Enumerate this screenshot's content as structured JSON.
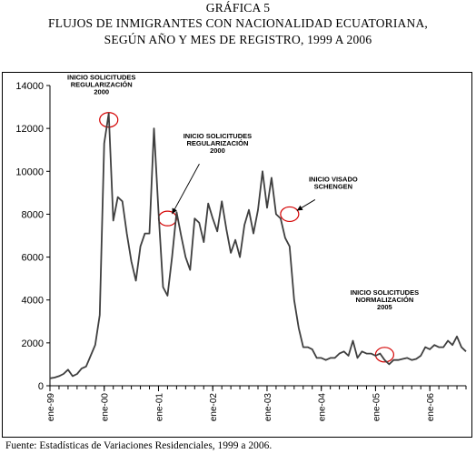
{
  "header": {
    "kicker": "GRÁFICA 5",
    "title_line1": "FLUJOS DE INMIGRANTES CON NACIONALIDAD ECUATORIANA,",
    "title_line2": "SEGÚN AÑO Y MES DE REGISTRO, 1999 A 2006"
  },
  "footer": {
    "source": "Fuente: Estadísticas de Variaciones Residenciales, 1999 a 2006."
  },
  "colors": {
    "line": "#3f3f3f",
    "annotation_circle": "#d40000",
    "axis": "#000000"
  },
  "chart_data": {
    "type": "line",
    "title": "",
    "xlabel": "",
    "ylabel": "",
    "ylim": [
      0,
      14000
    ],
    "yticks": [
      0,
      2000,
      4000,
      6000,
      8000,
      10000,
      12000,
      14000
    ],
    "ytick_labels": [
      "0",
      "2000",
      "4000",
      "6000",
      "8000",
      "10000",
      "12000",
      "14000"
    ],
    "xtick_labels": [
      "ene-99",
      "ene-00",
      "ene-01",
      "ene-02",
      "ene-03",
      "ene-04",
      "ene-05",
      "ene-06"
    ],
    "grid": false,
    "legend": "none",
    "series": [
      {
        "frequency": "monthly",
        "start": "ene-99",
        "values": [
          350,
          380,
          450,
          550,
          750,
          450,
          550,
          800,
          900,
          1400,
          1900,
          3300,
          11300,
          12700,
          7700,
          8800,
          8600,
          7100,
          5800,
          4900,
          6500,
          7100,
          7100,
          12000,
          8100,
          4600,
          4200,
          6000,
          8100,
          7000,
          6000,
          5400,
          7800,
          7600,
          6700,
          8500,
          7800,
          7200,
          8600,
          7300,
          6200,
          6800,
          6000,
          7500,
          8200,
          7100,
          8200,
          10000,
          8300,
          9700,
          8000,
          7800,
          6900,
          6500,
          4000,
          2700,
          1800,
          1800,
          1700,
          1300,
          1300,
          1200,
          1300,
          1300,
          1500,
          1600,
          1400,
          2100,
          1300,
          1600,
          1500,
          1500,
          1400,
          1500,
          1200,
          1000,
          1200,
          1200,
          1250,
          1300,
          1200,
          1250,
          1400,
          1800,
          1700,
          1900,
          1800,
          1800,
          2100,
          1900,
          2300,
          1800,
          1600
        ]
      }
    ],
    "annotations": [
      {
        "lines": [
          "INICIO SOLICITUDES",
          "REGULARIZACIÓN",
          "2000"
        ],
        "month_index": 13,
        "value": 12400,
        "style": "circle+arrow"
      },
      {
        "lines": [
          "INICIO SOLICITUDES",
          "REGULARIZACIÓN",
          "2000"
        ],
        "month_index": 26,
        "value": 7800,
        "style": "circle+arrow"
      },
      {
        "lines": [
          "INICIO VISADO",
          "SCHENGEN"
        ],
        "month_index": 53,
        "value": 8000,
        "style": "circle+arrow"
      },
      {
        "lines": [
          "INICIO SOLICITUDES",
          "NORMALIZACIÓN",
          "2005"
        ],
        "month_index": 74,
        "value": 1450,
        "style": "circle"
      }
    ]
  }
}
